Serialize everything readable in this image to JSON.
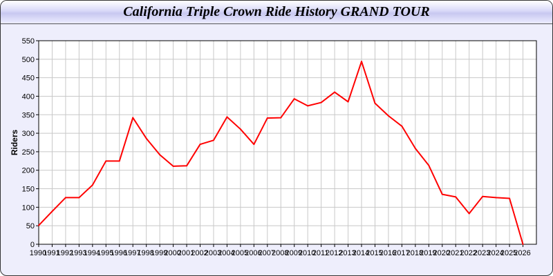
{
  "chart_data": {
    "type": "line",
    "title": "California Triple Crown Ride History GRAND TOUR",
    "xlabel": "",
    "ylabel": "Riders",
    "xlim": [
      1990,
      2027
    ],
    "ylim": [
      0,
      550
    ],
    "yticks": [
      0,
      50,
      100,
      150,
      200,
      250,
      300,
      350,
      400,
      450,
      500,
      550
    ],
    "grid": true,
    "x": [
      1990,
      1991,
      1992,
      1993,
      1994,
      1995,
      1996,
      1997,
      1998,
      1999,
      2000,
      2001,
      2002,
      2003,
      2004,
      2005,
      2006,
      2007,
      2008,
      2009,
      2010,
      2011,
      2012,
      2013,
      2014,
      2015,
      2016,
      2017,
      2018,
      2019,
      2020,
      2021,
      2022,
      2023,
      2024,
      2025,
      2026
    ],
    "series": [
      {
        "values": [
          51,
          89,
          126,
          126,
          160,
          225,
          225,
          342,
          286,
          242,
          211,
          212,
          270,
          281,
          344,
          311,
          270,
          341,
          342,
          393,
          374,
          383,
          411,
          385,
          494,
          381,
          347,
          319,
          259,
          213,
          135,
          128,
          83,
          129,
          126,
          124,
          0
        ],
        "color": "#ff0000"
      }
    ]
  }
}
